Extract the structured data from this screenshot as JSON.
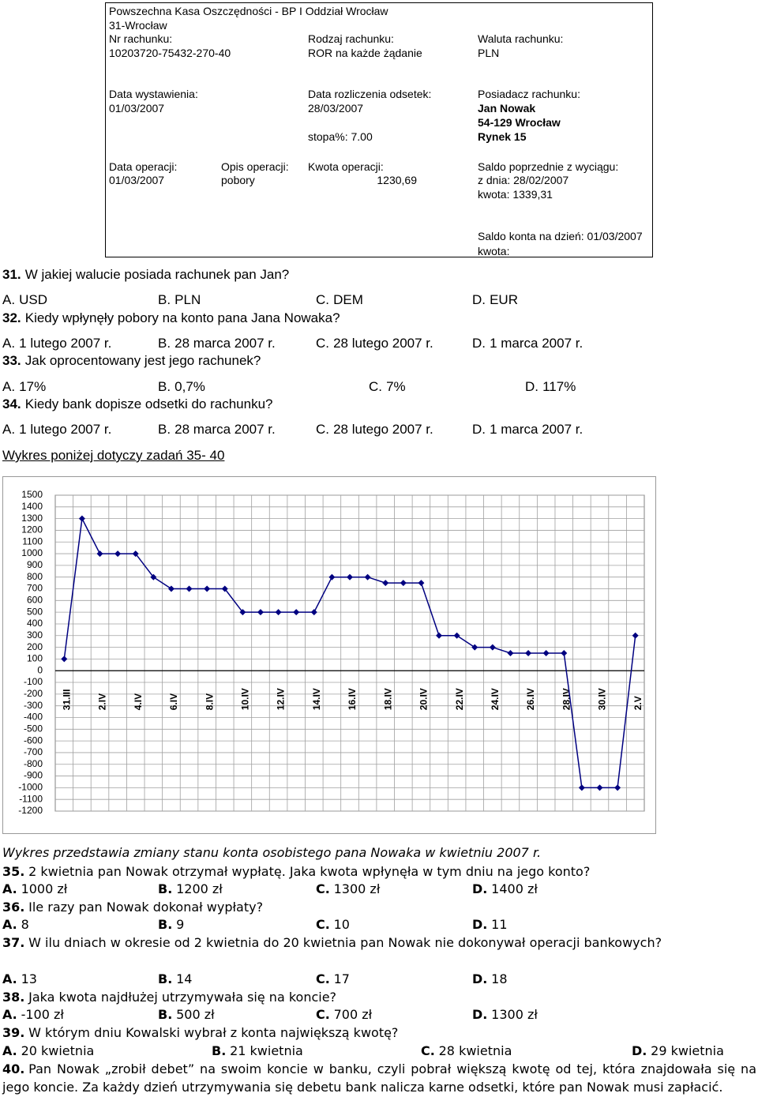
{
  "statement": {
    "bank": "Powszechna Kasa Oszczędności - BP I Oddział Wrocław",
    "city": "31-Wrocław",
    "account_number_label": "Nr rachunku:",
    "account_number": "10203720-75432-270-40",
    "account_type_label": "Rodzaj rachunku:",
    "account_type": "ROR na każde żądanie",
    "currency_label": "Waluta rachunku:",
    "currency": "PLN",
    "issue_date_label": "Data wystawienia:",
    "issue_date": "01/03/2007",
    "interest_date_label": "Data rozliczenia odsetek:",
    "interest_date": "28/03/2007",
    "rate": "stopa%: 7.00",
    "holder_label": "Posiadacz rachunku:",
    "holder_name": "Jan Nowak",
    "holder_postal": "54-129 Wrocław",
    "holder_street": "Rynek 15",
    "operation_date_label": "Data operacji:",
    "operation_date": "01/03/2007",
    "operation_desc_label": "Opis operacji:",
    "operation_desc": "pobory",
    "operation_amount_label": "Kwota operacji:",
    "operation_amount": "1230,69",
    "previous_balance_label": "Saldo poprzednie z wyciągu:",
    "previous_balance_date": "z dnia: 28/02/2007",
    "previous_balance_amount": "kwota: 1339,31",
    "balance_label": "Saldo konta na dzień: 01/03/2007",
    "balance_amount_label": "kwota:"
  },
  "questions_part1": [
    {
      "number": "31.",
      "text": "W jakiej walucie posiada rachunek pan Jan?",
      "answers": [
        {
          "letter": "A.",
          "text": "USD"
        },
        {
          "letter": "B.",
          "text": "PLN"
        },
        {
          "letter": "C.",
          "text": "DEM"
        },
        {
          "letter": "D.",
          "text": "EUR"
        }
      ]
    },
    {
      "number": "32.",
      "text": "Kiedy wpłynęły pobory na konto pana Jana Nowaka?",
      "answers": [
        {
          "letter": "A.",
          "text": "1 lutego 2007 r."
        },
        {
          "letter": "B.",
          "text": "28 marca 2007 r."
        },
        {
          "letter": "C.",
          "text": "28 lutego 2007 r."
        },
        {
          "letter": "D.",
          "text": "1 marca 2007 r."
        }
      ]
    },
    {
      "number": "33.",
      "text": "Jak oprocentowany jest jego rachunek?",
      "answers": [
        {
          "letter": "A.",
          "text": "17%"
        },
        {
          "letter": "B.",
          "text": "0,7%"
        },
        {
          "letter": "C.",
          "text": "7%"
        },
        {
          "letter": "D.",
          "text": "117%"
        }
      ]
    },
    {
      "number": "34.",
      "text": "Kiedy bank dopisze odsetki do rachunku?",
      "answers": [
        {
          "letter": "A.",
          "text": "1 lutego 2007 r."
        },
        {
          "letter": "B.",
          "text": "28 marca 2007 r."
        },
        {
          "letter": "C.",
          "text": "28 lutego 2007 r."
        },
        {
          "letter": "D.",
          "text": "1 marca 2007 r."
        }
      ]
    }
  ],
  "chart_intro": "Wykres poniżej dotyczy zadań 35- 40",
  "chart_data": {
    "type": "line",
    "categories": [
      "31.III",
      null,
      "2.IV",
      null,
      "4.IV",
      null,
      "6.IV",
      null,
      "8.IV",
      null,
      "10.IV",
      null,
      "12.IV",
      null,
      "14.IV",
      null,
      "16.IV",
      null,
      "18.IV",
      null,
      "20.IV",
      null,
      "22.IV",
      null,
      "24.IV",
      null,
      "26.IV",
      null,
      "28.IV",
      null,
      "30.IV",
      null,
      "2.V"
    ],
    "values": [
      100,
      1300,
      1000,
      1000,
      1000,
      800,
      700,
      700,
      700,
      700,
      500,
      500,
      500,
      500,
      500,
      800,
      800,
      800,
      750,
      750,
      750,
      300,
      300,
      200,
      200,
      150,
      150,
      150,
      150,
      -1000,
      -1000,
      -1000,
      300
    ],
    "color": "#000080",
    "ylim": [
      -1200,
      1500
    ],
    "yticks": [
      1500,
      1400,
      1300,
      1200,
      1100,
      1000,
      900,
      800,
      700,
      600,
      500,
      400,
      300,
      200,
      100,
      0,
      -100,
      -200,
      -300,
      -400,
      -500,
      -600,
      -700,
      -800,
      -900,
      -1000,
      -1100,
      -1200
    ],
    "grid": true
  },
  "chart_caption": "Wykres przedstawia zmiany stanu konta osobistego pana Nowaka w kwietniu 2007 r.",
  "questions_part2": [
    {
      "number": "35.",
      "text": "2 kwietnia pan Nowak otrzymał wypłatę. Jaka kwota wpłynęła w tym dniu na jego konto?",
      "answers": [
        {
          "letter": "A.",
          "text": "1000 zł"
        },
        {
          "letter": "B.",
          "text": "1200 zł"
        },
        {
          "letter": "C.",
          "text": "1300 zł"
        },
        {
          "letter": "D.",
          "text": "1400 zł"
        }
      ]
    },
    {
      "number": "36.",
      "text": "Ile razy pan Nowak dokonał wypłaty?",
      "answers": [
        {
          "letter": "A.",
          "text": "8"
        },
        {
          "letter": "B.",
          "text": "9"
        },
        {
          "letter": "C.",
          "text": "10"
        },
        {
          "letter": "D.",
          "text": "11"
        }
      ]
    },
    {
      "number": "37.",
      "text": "W ilu dniach w okresie od 2 kwietnia do 20 kwietnia pan Nowak nie dokonywał operacji bankowych?",
      "answers": [
        {
          "letter": "A.",
          "text": "13"
        },
        {
          "letter": "B.",
          "text": "14"
        },
        {
          "letter": "C.",
          "text": "17"
        },
        {
          "letter": "D.",
          "text": "18"
        }
      ]
    },
    {
      "number": "38.",
      "text": "Jaka kwota najdłużej utrzymywała się na koncie?",
      "answers": [
        {
          "letter": "A.",
          "text": "-100 zł"
        },
        {
          "letter": "B.",
          "text": "500 zł"
        },
        {
          "letter": "C.",
          "text": "700 zł"
        },
        {
          "letter": "D.",
          "text": "1300 zł"
        }
      ]
    },
    {
      "number": "39.",
      "text": "W którym dniu Kowalski wybrał z konta największą kwotę?",
      "answers": [
        {
          "letter": "A.",
          "text": "20 kwietnia"
        },
        {
          "letter": "B.",
          "text": "21 kwietnia"
        },
        {
          "letter": "C.",
          "text": "28 kwietnia"
        },
        {
          "letter": "D.",
          "text": "29 kwietnia"
        }
      ]
    },
    {
      "number": "40.",
      "text": "Pan Nowak „zrobił debet” na swoim koncie w banku, czyli pobrał większą kwotę od tej, która znajdowała się na jego koncie. Za każdy dzień utrzymywania się debetu bank nalicza karne odsetki, które pan Nowak musi zapłacić."
    }
  ]
}
